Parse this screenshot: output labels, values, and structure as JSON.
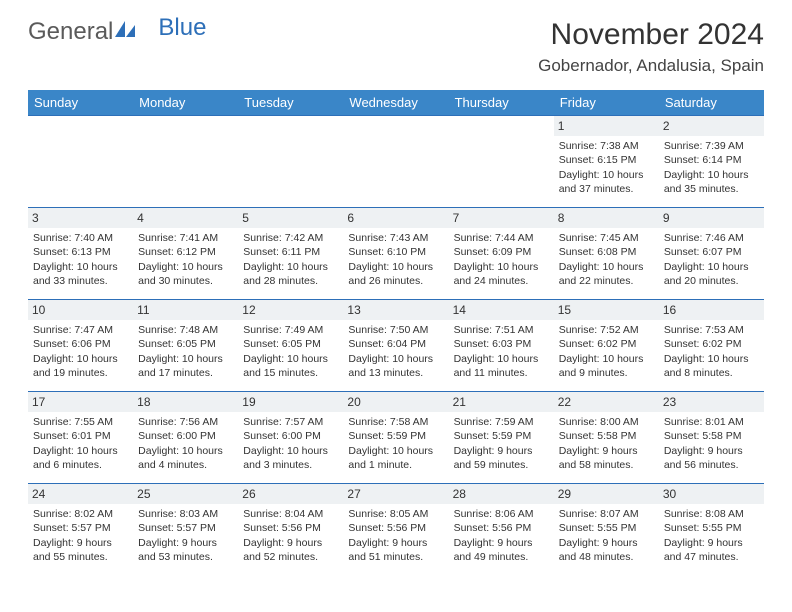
{
  "logo": {
    "text_general": "General",
    "text_blue": "Blue"
  },
  "header": {
    "month_title": "November 2024",
    "location": "Gobernador, Andalusia, Spain"
  },
  "colors": {
    "header_bg": "#3a86c8",
    "border": "#2d6fb8",
    "daynum_bg": "#eef1f3",
    "text": "#333333",
    "logo_gray": "#5a5a5a",
    "logo_blue": "#2d6fb8"
  },
  "weekdays": [
    "Sunday",
    "Monday",
    "Tuesday",
    "Wednesday",
    "Thursday",
    "Friday",
    "Saturday"
  ],
  "weeks": [
    [
      null,
      null,
      null,
      null,
      null,
      {
        "day": "1",
        "sunrise": "Sunrise: 7:38 AM",
        "sunset": "Sunset: 6:15 PM",
        "daylight1": "Daylight: 10 hours",
        "daylight2": "and 37 minutes."
      },
      {
        "day": "2",
        "sunrise": "Sunrise: 7:39 AM",
        "sunset": "Sunset: 6:14 PM",
        "daylight1": "Daylight: 10 hours",
        "daylight2": "and 35 minutes."
      }
    ],
    [
      {
        "day": "3",
        "sunrise": "Sunrise: 7:40 AM",
        "sunset": "Sunset: 6:13 PM",
        "daylight1": "Daylight: 10 hours",
        "daylight2": "and 33 minutes."
      },
      {
        "day": "4",
        "sunrise": "Sunrise: 7:41 AM",
        "sunset": "Sunset: 6:12 PM",
        "daylight1": "Daylight: 10 hours",
        "daylight2": "and 30 minutes."
      },
      {
        "day": "5",
        "sunrise": "Sunrise: 7:42 AM",
        "sunset": "Sunset: 6:11 PM",
        "daylight1": "Daylight: 10 hours",
        "daylight2": "and 28 minutes."
      },
      {
        "day": "6",
        "sunrise": "Sunrise: 7:43 AM",
        "sunset": "Sunset: 6:10 PM",
        "daylight1": "Daylight: 10 hours",
        "daylight2": "and 26 minutes."
      },
      {
        "day": "7",
        "sunrise": "Sunrise: 7:44 AM",
        "sunset": "Sunset: 6:09 PM",
        "daylight1": "Daylight: 10 hours",
        "daylight2": "and 24 minutes."
      },
      {
        "day": "8",
        "sunrise": "Sunrise: 7:45 AM",
        "sunset": "Sunset: 6:08 PM",
        "daylight1": "Daylight: 10 hours",
        "daylight2": "and 22 minutes."
      },
      {
        "day": "9",
        "sunrise": "Sunrise: 7:46 AM",
        "sunset": "Sunset: 6:07 PM",
        "daylight1": "Daylight: 10 hours",
        "daylight2": "and 20 minutes."
      }
    ],
    [
      {
        "day": "10",
        "sunrise": "Sunrise: 7:47 AM",
        "sunset": "Sunset: 6:06 PM",
        "daylight1": "Daylight: 10 hours",
        "daylight2": "and 19 minutes."
      },
      {
        "day": "11",
        "sunrise": "Sunrise: 7:48 AM",
        "sunset": "Sunset: 6:05 PM",
        "daylight1": "Daylight: 10 hours",
        "daylight2": "and 17 minutes."
      },
      {
        "day": "12",
        "sunrise": "Sunrise: 7:49 AM",
        "sunset": "Sunset: 6:05 PM",
        "daylight1": "Daylight: 10 hours",
        "daylight2": "and 15 minutes."
      },
      {
        "day": "13",
        "sunrise": "Sunrise: 7:50 AM",
        "sunset": "Sunset: 6:04 PM",
        "daylight1": "Daylight: 10 hours",
        "daylight2": "and 13 minutes."
      },
      {
        "day": "14",
        "sunrise": "Sunrise: 7:51 AM",
        "sunset": "Sunset: 6:03 PM",
        "daylight1": "Daylight: 10 hours",
        "daylight2": "and 11 minutes."
      },
      {
        "day": "15",
        "sunrise": "Sunrise: 7:52 AM",
        "sunset": "Sunset: 6:02 PM",
        "daylight1": "Daylight: 10 hours",
        "daylight2": "and 9 minutes."
      },
      {
        "day": "16",
        "sunrise": "Sunrise: 7:53 AM",
        "sunset": "Sunset: 6:02 PM",
        "daylight1": "Daylight: 10 hours",
        "daylight2": "and 8 minutes."
      }
    ],
    [
      {
        "day": "17",
        "sunrise": "Sunrise: 7:55 AM",
        "sunset": "Sunset: 6:01 PM",
        "daylight1": "Daylight: 10 hours",
        "daylight2": "and 6 minutes."
      },
      {
        "day": "18",
        "sunrise": "Sunrise: 7:56 AM",
        "sunset": "Sunset: 6:00 PM",
        "daylight1": "Daylight: 10 hours",
        "daylight2": "and 4 minutes."
      },
      {
        "day": "19",
        "sunrise": "Sunrise: 7:57 AM",
        "sunset": "Sunset: 6:00 PM",
        "daylight1": "Daylight: 10 hours",
        "daylight2": "and 3 minutes."
      },
      {
        "day": "20",
        "sunrise": "Sunrise: 7:58 AM",
        "sunset": "Sunset: 5:59 PM",
        "daylight1": "Daylight: 10 hours",
        "daylight2": "and 1 minute."
      },
      {
        "day": "21",
        "sunrise": "Sunrise: 7:59 AM",
        "sunset": "Sunset: 5:59 PM",
        "daylight1": "Daylight: 9 hours",
        "daylight2": "and 59 minutes."
      },
      {
        "day": "22",
        "sunrise": "Sunrise: 8:00 AM",
        "sunset": "Sunset: 5:58 PM",
        "daylight1": "Daylight: 9 hours",
        "daylight2": "and 58 minutes."
      },
      {
        "day": "23",
        "sunrise": "Sunrise: 8:01 AM",
        "sunset": "Sunset: 5:58 PM",
        "daylight1": "Daylight: 9 hours",
        "daylight2": "and 56 minutes."
      }
    ],
    [
      {
        "day": "24",
        "sunrise": "Sunrise: 8:02 AM",
        "sunset": "Sunset: 5:57 PM",
        "daylight1": "Daylight: 9 hours",
        "daylight2": "and 55 minutes."
      },
      {
        "day": "25",
        "sunrise": "Sunrise: 8:03 AM",
        "sunset": "Sunset: 5:57 PM",
        "daylight1": "Daylight: 9 hours",
        "daylight2": "and 53 minutes."
      },
      {
        "day": "26",
        "sunrise": "Sunrise: 8:04 AM",
        "sunset": "Sunset: 5:56 PM",
        "daylight1": "Daylight: 9 hours",
        "daylight2": "and 52 minutes."
      },
      {
        "day": "27",
        "sunrise": "Sunrise: 8:05 AM",
        "sunset": "Sunset: 5:56 PM",
        "daylight1": "Daylight: 9 hours",
        "daylight2": "and 51 minutes."
      },
      {
        "day": "28",
        "sunrise": "Sunrise: 8:06 AM",
        "sunset": "Sunset: 5:56 PM",
        "daylight1": "Daylight: 9 hours",
        "daylight2": "and 49 minutes."
      },
      {
        "day": "29",
        "sunrise": "Sunrise: 8:07 AM",
        "sunset": "Sunset: 5:55 PM",
        "daylight1": "Daylight: 9 hours",
        "daylight2": "and 48 minutes."
      },
      {
        "day": "30",
        "sunrise": "Sunrise: 8:08 AM",
        "sunset": "Sunset: 5:55 PM",
        "daylight1": "Daylight: 9 hours",
        "daylight2": "and 47 minutes."
      }
    ]
  ]
}
